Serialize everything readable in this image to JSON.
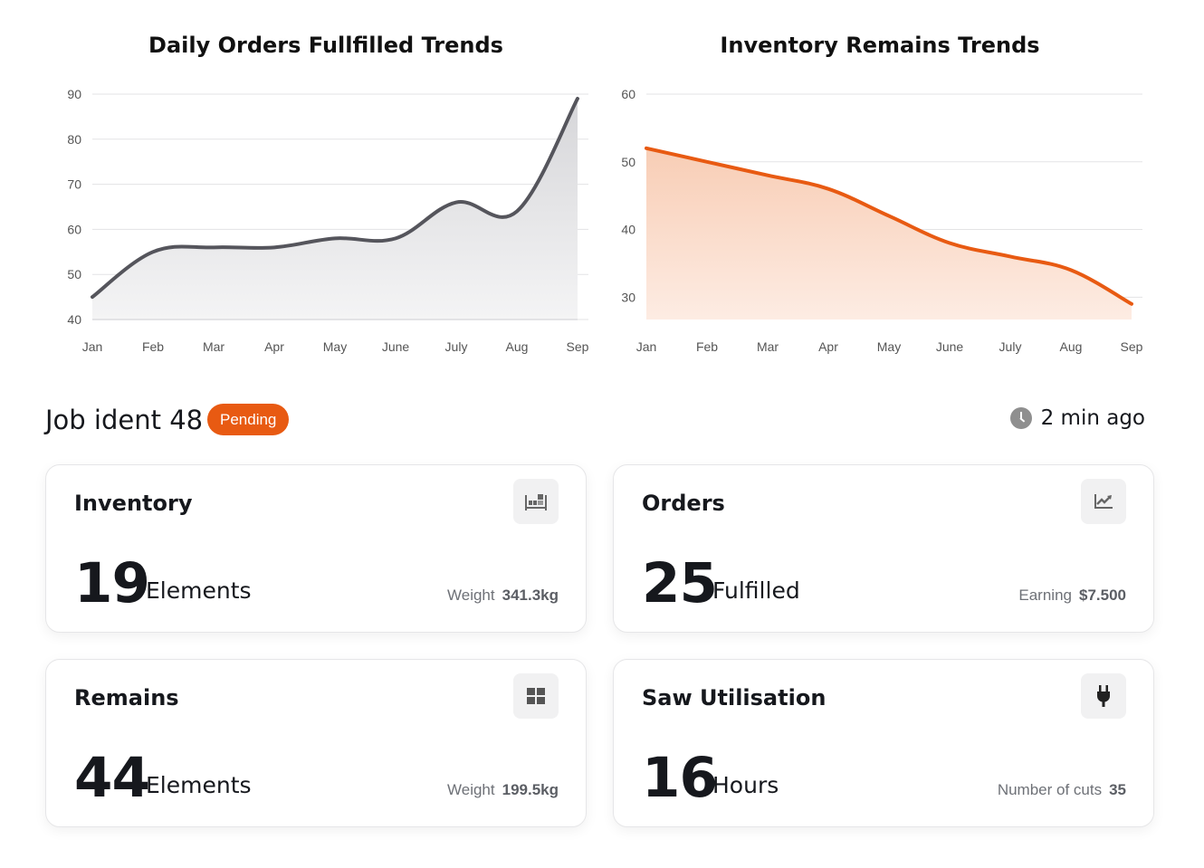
{
  "charts": {
    "orders": {
      "title": "Daily Orders Fullfilled Trends"
    },
    "inventory": {
      "title": "Inventory Remains Trends"
    }
  },
  "chart_data": [
    {
      "type": "area",
      "title": "Daily Orders Fullfilled Trends",
      "categories": [
        "Jan",
        "Feb",
        "Mar",
        "Apr",
        "May",
        "June",
        "July",
        "Aug",
        "Sep"
      ],
      "values": [
        45,
        55,
        56,
        56,
        58,
        58,
        66,
        64,
        89
      ],
      "ylim": [
        40,
        90
      ],
      "yticks": [
        40,
        50,
        60,
        70,
        80,
        90
      ],
      "grid": true,
      "colors": {
        "line": "#55555c",
        "fill_top": "#d6d6d9",
        "fill_bottom": "#f4f4f5"
      }
    },
    {
      "type": "area",
      "title": "Inventory Remains Trends",
      "categories": [
        "Jan",
        "Feb",
        "Mar",
        "Apr",
        "May",
        "June",
        "July",
        "Aug",
        "Sep"
      ],
      "values": [
        52,
        50,
        48,
        46,
        42,
        38,
        36,
        34,
        29
      ],
      "ylim": [
        26.7,
        60
      ],
      "yticks": [
        30,
        40,
        50,
        60
      ],
      "grid": true,
      "colors": {
        "line": "#e85a12",
        "fill_top": "#f8cdb5",
        "fill_bottom": "#fdece3"
      }
    }
  ],
  "job": {
    "title": "Job ident 48",
    "status": "Pending",
    "time": "2 min ago",
    "status_color": "#e85a12"
  },
  "cards": {
    "inventory": {
      "title": "Inventory",
      "value": "19",
      "unit": "Elements",
      "meta_label": "Weight",
      "meta_value": "341.3kg",
      "icon": "shelf-icon"
    },
    "orders": {
      "title": "Orders",
      "value": "25",
      "unit": "Fulfilled",
      "meta_label": "Earning",
      "meta_value": "$7.500",
      "icon": "trend-chart-icon"
    },
    "remains": {
      "title": "Remains",
      "value": "44",
      "unit": "Elements",
      "meta_label": "Weight",
      "meta_value": "199.5kg",
      "icon": "grid-icon"
    },
    "saw": {
      "title": "Saw Utilisation",
      "value": "16",
      "unit": "Hours",
      "meta_label": "Number of cuts",
      "meta_value": "35",
      "icon": "plug-icon"
    }
  }
}
